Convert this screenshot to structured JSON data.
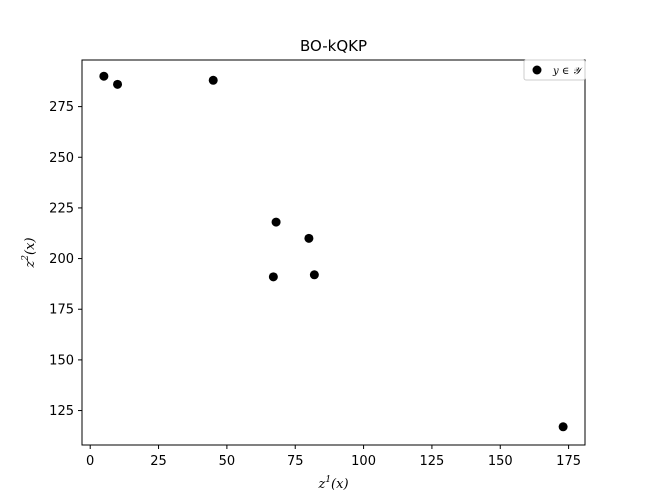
{
  "chart_data": {
    "type": "scatter",
    "title": "BO-kQKP",
    "xlabel_base": "z",
    "xlabel_sup": "1",
    "xlabel_suffix": "(x)",
    "ylabel_base": "z",
    "ylabel_sup": "2",
    "ylabel_suffix": "(x)",
    "xlim": [
      -3,
      181
    ],
    "ylim": [
      108,
      298
    ],
    "xticks": [
      0,
      25,
      50,
      75,
      100,
      125,
      150,
      175
    ],
    "yticks": [
      125,
      150,
      175,
      200,
      225,
      250,
      275
    ],
    "grid": false,
    "legend_placement": "top-right",
    "series": [
      {
        "name": "y ∈ 𝒴",
        "color": "#000000",
        "points": [
          {
            "x": 5,
            "y": 290
          },
          {
            "x": 10,
            "y": 286
          },
          {
            "x": 45,
            "y": 288
          },
          {
            "x": 68,
            "y": 218
          },
          {
            "x": 80,
            "y": 210
          },
          {
            "x": 67,
            "y": 191
          },
          {
            "x": 82,
            "y": 192
          },
          {
            "x": 173,
            "y": 117
          }
        ]
      }
    ]
  }
}
